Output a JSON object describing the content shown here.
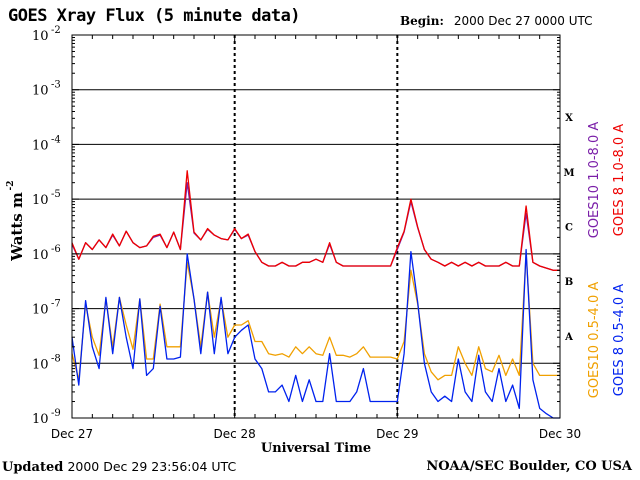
{
  "header": {
    "title": "GOES Xray Flux (5 minute data)",
    "begin_label": "Begin:",
    "begin_value": "2000 Dec 27 0000 UTC"
  },
  "footer": {
    "updated_label": "Updated",
    "updated_value": "2000 Dec 29 23:56:04 UTC",
    "credit": "NOAA/SEC Boulder, CO USA"
  },
  "chart_data": {
    "type": "line",
    "title": "GOES Xray Flux (5 minute data)",
    "xlabel": "Universal Time",
    "ylabel": "Watts m",
    "ylabel_superscript": "-2",
    "yscale": "log",
    "ylim": [
      1e-09,
      0.01
    ],
    "xlim": [
      0,
      72
    ],
    "x_unit": "hours since Begin",
    "xtick_labels": [
      "Dec 27",
      "Dec 28",
      "Dec 29",
      "Dec 30"
    ],
    "xticks": [
      0,
      24,
      48,
      72
    ],
    "ytick_exponents": [
      -9,
      -8,
      -7,
      -6,
      -5,
      -4,
      -3,
      -2
    ],
    "ytick_base": "10",
    "flare_classes": [
      {
        "label": "A",
        "exp": -8
      },
      {
        "label": "B",
        "exp": -7
      },
      {
        "label": "C",
        "exp": -6
      },
      {
        "label": "M",
        "exp": -5
      },
      {
        "label": "X",
        "exp": -4
      }
    ],
    "grid": "horizontal lines at decades from 1e-8 to 1e-3; dashed day boundaries",
    "legend_position": "right, vertical text",
    "series": [
      {
        "name": "GOES10 1.0-8.0 A",
        "color": "#7a1ea8",
        "x": [
          0,
          1,
          2,
          3,
          4,
          5,
          6,
          7,
          8,
          9,
          10,
          11,
          12,
          13,
          14,
          15,
          16,
          17,
          18,
          19,
          20,
          21,
          22,
          23,
          24,
          25,
          26,
          27,
          28,
          29,
          30,
          31,
          32,
          33,
          34,
          35,
          36,
          37,
          38,
          39,
          40,
          41,
          42,
          43,
          44,
          45,
          46,
          47,
          48,
          49,
          50,
          51,
          52,
          53,
          54,
          55,
          56,
          57,
          58,
          59,
          60,
          61,
          62,
          63,
          64,
          65,
          66,
          67,
          68,
          69,
          70,
          71,
          72
        ],
        "y": [
          1.5e-06,
          8e-07,
          1.6e-06,
          1.2e-06,
          1.8e-06,
          1.3e-06,
          2.2e-06,
          1.4e-06,
          2.6e-06,
          1.6e-06,
          1.3e-06,
          1.4e-06,
          2e-06,
          2.2e-06,
          1.3e-06,
          2.5e-06,
          1.2e-06,
          2e-05,
          2.4e-06,
          1.8e-06,
          2.8e-06,
          2.2e-06,
          1.9e-06,
          1.8e-06,
          2.8e-06,
          1.9e-06,
          2.2e-06,
          1.1e-06,
          7e-07,
          6e-07,
          6e-07,
          7e-07,
          6e-07,
          6e-07,
          7e-07,
          7e-07,
          8e-07,
          7e-07,
          1.5e-06,
          7e-07,
          6e-07,
          6e-07,
          6e-07,
          6e-07,
          6e-07,
          6e-07,
          6e-07,
          6e-07,
          1.2e-06,
          2.5e-06,
          9e-06,
          3e-06,
          1.2e-06,
          8e-07,
          7e-07,
          6e-07,
          7e-07,
          6e-07,
          7e-07,
          6e-07,
          7e-07,
          6e-07,
          6e-07,
          6e-07,
          7e-07,
          6e-07,
          6e-07,
          5.5e-06,
          7e-07,
          6e-07,
          5.5e-07,
          5e-07,
          5e-07
        ]
      },
      {
        "name": "GOES 8 1.0-8.0 A",
        "color": "#ee0000",
        "x": [
          0,
          1,
          2,
          3,
          4,
          5,
          6,
          7,
          8,
          9,
          10,
          11,
          12,
          13,
          14,
          15,
          16,
          17,
          18,
          19,
          20,
          21,
          22,
          23,
          24,
          25,
          26,
          27,
          28,
          29,
          30,
          31,
          32,
          33,
          34,
          35,
          36,
          37,
          38,
          39,
          40,
          41,
          42,
          43,
          44,
          45,
          46,
          47,
          48,
          49,
          50,
          51,
          52,
          53,
          54,
          55,
          56,
          57,
          58,
          59,
          60,
          61,
          62,
          63,
          64,
          65,
          66,
          67,
          68,
          69,
          70,
          71,
          72
        ],
        "y": [
          1.6e-06,
          8e-07,
          1.6e-06,
          1.2e-06,
          1.8e-06,
          1.3e-06,
          2.3e-06,
          1.4e-06,
          2.6e-06,
          1.6e-06,
          1.3e-06,
          1.4e-06,
          2.1e-06,
          2.3e-06,
          1.3e-06,
          2.5e-06,
          1.2e-06,
          3.3e-05,
          2.5e-06,
          1.8e-06,
          2.9e-06,
          2.2e-06,
          1.9e-06,
          1.8e-06,
          2.9e-06,
          1.9e-06,
          2.3e-06,
          1.1e-06,
          7e-07,
          6e-07,
          6e-07,
          7e-07,
          6e-07,
          6e-07,
          7e-07,
          7e-07,
          8e-07,
          7e-07,
          1.6e-06,
          7e-07,
          6e-07,
          6e-07,
          6e-07,
          6e-07,
          6e-07,
          6e-07,
          6e-07,
          6e-07,
          1.3e-06,
          2.6e-06,
          1e-05,
          3.1e-06,
          1.2e-06,
          8e-07,
          7e-07,
          6e-07,
          7e-07,
          6e-07,
          7e-07,
          6e-07,
          7e-07,
          6e-07,
          6e-07,
          6e-07,
          7e-07,
          6e-07,
          6e-07,
          7.5e-06,
          7e-07,
          6e-07,
          5.5e-07,
          5e-07,
          5e-07
        ]
      },
      {
        "name": "GOES10 0.5-4.0 A",
        "color": "#f0a000",
        "x": [
          0,
          1,
          2,
          3,
          4,
          5,
          6,
          7,
          8,
          9,
          10,
          11,
          12,
          13,
          14,
          15,
          16,
          17,
          18,
          19,
          20,
          21,
          22,
          23,
          24,
          25,
          26,
          27,
          28,
          29,
          30,
          31,
          32,
          33,
          34,
          35,
          36,
          37,
          38,
          39,
          40,
          41,
          42,
          43,
          44,
          45,
          46,
          47,
          48,
          49,
          50,
          51,
          52,
          53,
          54,
          55,
          56,
          57,
          58,
          59,
          60,
          61,
          62,
          63,
          64,
          65,
          66,
          67,
          68,
          69,
          70,
          71,
          72
        ],
        "y": [
          1.5e-08,
          5e-09,
          1.2e-07,
          3e-08,
          1.4e-08,
          1.5e-07,
          2e-08,
          1.6e-07,
          5e-08,
          1.8e-08,
          1.5e-07,
          1.2e-08,
          1.2e-08,
          1.2e-07,
          2e-08,
          2e-08,
          2e-08,
          7e-07,
          1.5e-07,
          2e-08,
          2e-07,
          3e-08,
          1.5e-07,
          3e-08,
          5e-08,
          5e-08,
          6e-08,
          2.5e-08,
          2.5e-08,
          1.5e-08,
          1.4e-08,
          1.5e-08,
          1.3e-08,
          2e-08,
          1.5e-08,
          2e-08,
          1.5e-08,
          1.4e-08,
          3e-08,
          1.4e-08,
          1.4e-08,
          1.3e-08,
          1.5e-08,
          2e-08,
          1.3e-08,
          1.3e-08,
          1.3e-08,
          1.3e-08,
          1.2e-08,
          2.5e-08,
          5e-07,
          1.2e-07,
          1.5e-08,
          7e-09,
          5e-09,
          6e-09,
          6e-09,
          2e-08,
          1e-08,
          6e-09,
          2e-08,
          8e-09,
          7e-09,
          1.4e-08,
          6e-09,
          1.2e-08,
          6e-09,
          1e-06,
          1e-08,
          6e-09,
          6e-09,
          6e-09,
          6e-09
        ]
      },
      {
        "name": "GOES 8 0.5-4.0 A",
        "color": "#0022ee",
        "x": [
          0,
          1,
          2,
          3,
          4,
          5,
          6,
          7,
          8,
          9,
          10,
          11,
          12,
          13,
          14,
          15,
          16,
          17,
          18,
          19,
          20,
          21,
          22,
          23,
          24,
          25,
          26,
          27,
          28,
          29,
          30,
          31,
          32,
          33,
          34,
          35,
          36,
          37,
          38,
          39,
          40,
          41,
          42,
          43,
          44,
          45,
          46,
          47,
          48,
          49,
          50,
          51,
          52,
          53,
          54,
          55,
          56,
          57,
          58,
          59,
          60,
          61,
          62,
          63,
          64,
          65,
          66,
          67,
          68,
          69,
          70,
          71,
          72
        ],
        "y": [
          3e-08,
          4e-09,
          1.4e-07,
          2e-08,
          8e-09,
          1.6e-07,
          1.5e-08,
          1.6e-07,
          3e-08,
          8e-09,
          1.5e-07,
          6e-09,
          8e-09,
          1.1e-07,
          1.2e-08,
          1.2e-08,
          1.3e-08,
          1e-06,
          1.5e-07,
          1.5e-08,
          2e-07,
          1.5e-08,
          1.6e-07,
          1.5e-08,
          3e-08,
          4e-08,
          5e-08,
          1.2e-08,
          8e-09,
          3e-09,
          3e-09,
          4e-09,
          2e-09,
          6e-09,
          2e-09,
          5e-09,
          2e-09,
          2e-09,
          1.5e-08,
          2e-09,
          2e-09,
          2e-09,
          3e-09,
          8e-09,
          2e-09,
          2e-09,
          2e-09,
          2e-09,
          2e-09,
          1.5e-08,
          1.1e-06,
          1.3e-07,
          1e-08,
          3e-09,
          2e-09,
          2.5e-09,
          2e-09,
          1.2e-08,
          3e-09,
          2e-09,
          1.4e-08,
          3e-09,
          2e-09,
          8e-09,
          2e-09,
          4e-09,
          1.5e-09,
          1.2e-06,
          5e-09,
          1.5e-09,
          1.2e-09,
          1e-09,
          1e-09
        ]
      }
    ]
  }
}
